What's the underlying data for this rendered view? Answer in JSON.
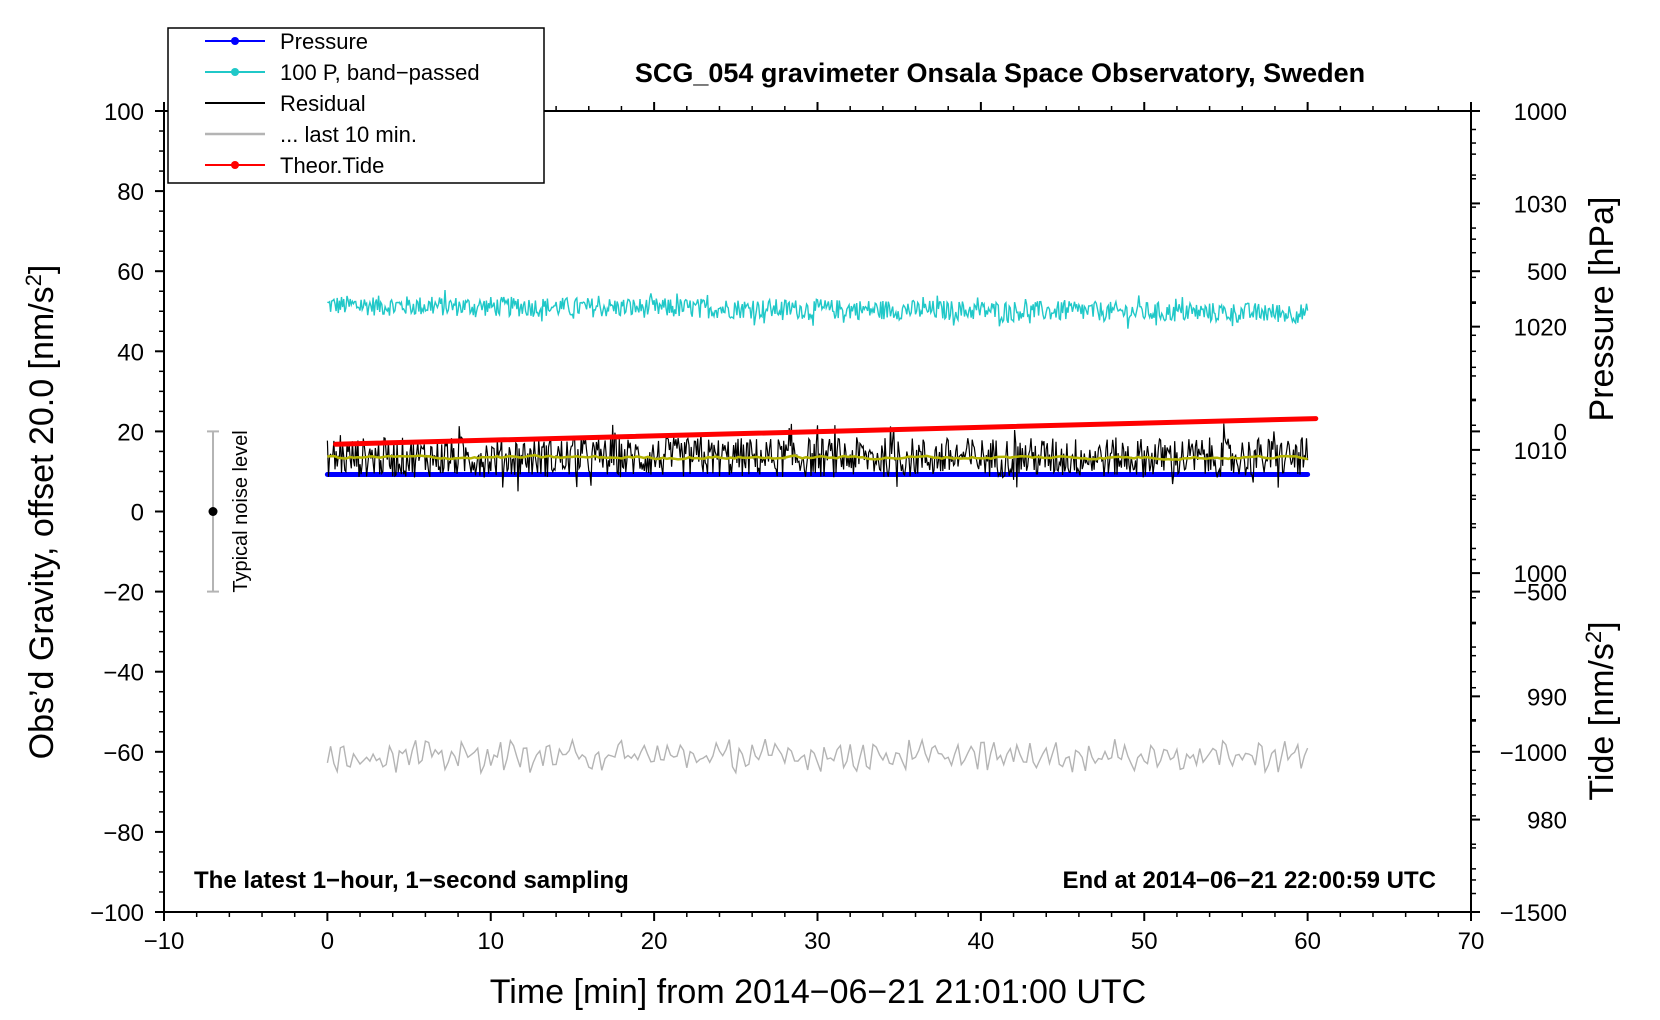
{
  "chart_data": {
    "type": "line",
    "title": "SCG_054 gravimeter Onsala Space Observatory, Sweden",
    "xlabel": "Time [min] from 2014−06−21 21:01:00 UTC",
    "ylabel": "Obs’d Gravity, offset 20.0 [nm/s",
    "ylabel_sup": "2",
    "ylabel_end": "]",
    "y2_pressure_label": "Pressure [hPa]",
    "y2_tide_label": "Tide [nm/s",
    "y2_tide_sup": "2",
    "y2_tide_end": "]",
    "xlim": [
      -10,
      70
    ],
    "ylim": [
      -100,
      100
    ],
    "pressure_lim": [
      972.5,
      1037.5
    ],
    "tide_lim": [
      -1500,
      1000
    ],
    "x_ticks": [
      -10,
      0,
      10,
      20,
      30,
      40,
      50,
      60,
      70
    ],
    "x_tick_labels": [
      "−10",
      "0",
      "10",
      "20",
      "30",
      "40",
      "50",
      "60",
      "70"
    ],
    "y_ticks": [
      -100,
      -80,
      -60,
      -40,
      -20,
      0,
      20,
      40,
      60,
      80,
      100
    ],
    "y_tick_labels": [
      "−100",
      "−80",
      "−60",
      "−40",
      "−20",
      "0",
      "20",
      "40",
      "60",
      "80",
      "100"
    ],
    "pressure_ticks": [
      980,
      990,
      1000,
      1010,
      1020,
      1030
    ],
    "pressure_tick_labels": [
      "980",
      "990",
      "1000",
      "1010",
      "1020",
      "1030"
    ],
    "tide_ticks": [
      -1500,
      -1000,
      -500,
      0,
      500,
      1000
    ],
    "tide_tick_labels": [
      "−1500",
      "−1000",
      "−500",
      "0",
      "500",
      "1000"
    ],
    "legend": {
      "location": "top-left",
      "entries": [
        {
          "label": "Pressure",
          "color": "#0000ff",
          "marker": true
        },
        {
          "label": "100 P, band−passed",
          "color": "#20c8c8",
          "marker": true
        },
        {
          "label": "Residual",
          "color": "#000000",
          "marker": false
        },
        {
          "label": "... last 10 min.",
          "color": "#b4b4b4",
          "marker": false
        },
        {
          "label": "Theor.Tide",
          "color": "#ff0000",
          "marker": true
        }
      ]
    },
    "series": [
      {
        "name": "Pressure",
        "axis": "pressure",
        "color": "#0000ff",
        "x": [
          0,
          60
        ],
        "values": [
          1008.0,
          1008.0
        ]
      },
      {
        "name": "100 P, band−passed",
        "axis": "gravity",
        "color": "#20c8c8",
        "x": [
          0,
          60
        ],
        "values": [
          51.5,
          49.5
        ],
        "noise_amplitude": 2.5
      },
      {
        "name": "Residual",
        "axis": "gravity",
        "color": "#000000",
        "x": [
          0,
          60
        ],
        "values": [
          13.5,
          13.5
        ],
        "noise_amplitude": 5
      },
      {
        "name": "Residual (smoothed)",
        "axis": "gravity",
        "color": "#b4b400",
        "x": [
          0,
          60
        ],
        "values": [
          13.5,
          13.5
        ],
        "noise_amplitude": 1
      },
      {
        "name": "... last 10 min.",
        "axis": "gravity",
        "color": "#b4b4b4",
        "x": [
          0,
          60
        ],
        "values": [
          -61,
          -61
        ],
        "noise_amplitude": 4
      },
      {
        "name": "Theor.Tide",
        "axis": "tide",
        "color": "#ff0000",
        "x": [
          0.5,
          60.5
        ],
        "values": [
          -40,
          40
        ]
      }
    ],
    "noise_bar": {
      "label": "Typical noise level",
      "x": -7,
      "y_low": -20,
      "y_high": 20,
      "y_center": 0
    },
    "annotations": {
      "bottom_left": "The latest 1−hour, 1−second sampling",
      "bottom_right": "End at 2014−06−21 22:00:59 UTC"
    },
    "colors": {
      "axis": "#000000",
      "frame": "#000000"
    }
  }
}
